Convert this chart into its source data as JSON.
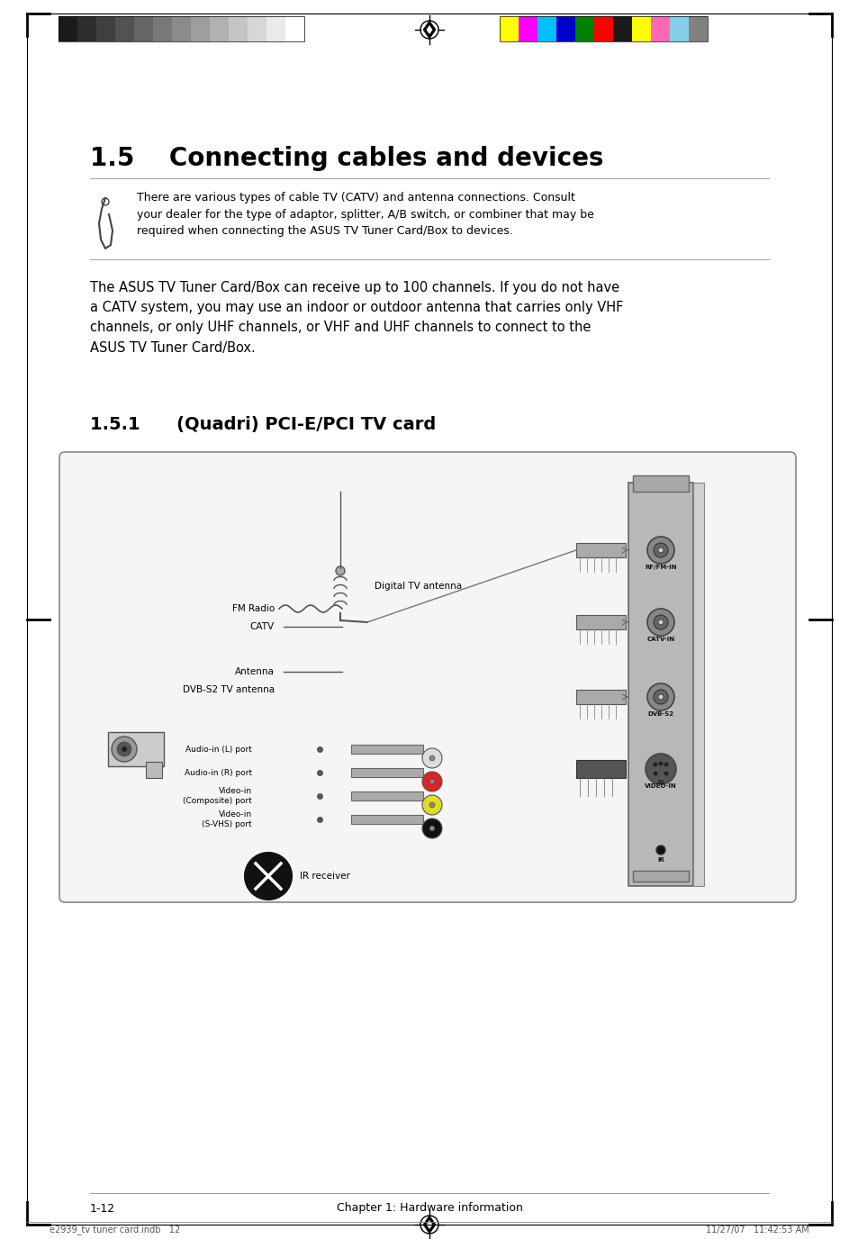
{
  "page_bg": "#ffffff",
  "title_section": "1.5    Connecting cables and devices",
  "note_text": "There are various types of cable TV (CATV) and antenna connections. Consult\nyour dealer for the type of adaptor, splitter, A/B switch, or combiner that may be\nrequired when connecting the ASUS TV Tuner Card/Box to devices.",
  "body_text": "The ASUS TV Tuner Card/Box can receive up to 100 channels. If you do not have\na CATV system, you may use an indoor or outdoor antenna that carries only VHF\nchannels, or only UHF channels, or VHF and UHF channels to connect to the\nASUS TV Tuner Card/Box.",
  "subtitle_section": "1.5.1      (Quadri) PCI-E/PCI TV card",
  "diagram_labels": {
    "digital_tv_antenna": "Digital TV antenna",
    "fm_radio": "FM Radio",
    "catv": "CATV",
    "antenna": "Antenna",
    "dvbs2_tv_antenna": "DVB-S2 TV antenna",
    "audio_in_l": "Audio-in (L) port",
    "audio_in_r": "Audio-in (R) port",
    "video_in_composite": "Video-in\n(Composite) port",
    "video_in_svhs": "Video-in\n(S-VHS) port",
    "ir_receiver": "IR receiver",
    "rf_fm_in": "RF/FM-IN",
    "catv_in": "CATV-IN",
    "dvb_s2": "DVB-S2",
    "video_in": "VIDEO-IN",
    "ir": "IR"
  },
  "footer_left": "1-12",
  "footer_center": "Chapter 1: Hardware information",
  "footer_file": "e2939_tv tuner card.indb   12",
  "footer_time": "11/27/07   11:42:53 AM",
  "color_bars_gray": [
    "#1a1a1a",
    "#2d2d2d",
    "#3f3f3f",
    "#525252",
    "#656565",
    "#787878",
    "#8b8b8b",
    "#9e9e9e",
    "#b1b1b1",
    "#c4c4c4",
    "#d7d7d7",
    "#eaeaea",
    "#ffffff"
  ],
  "color_bars_color": [
    "#ffff00",
    "#ff00ff",
    "#00bfff",
    "#0000cd",
    "#008000",
    "#ff0000",
    "#1a1a1a",
    "#ffff00",
    "#ff69b4",
    "#87ceeb",
    "#808080"
  ]
}
